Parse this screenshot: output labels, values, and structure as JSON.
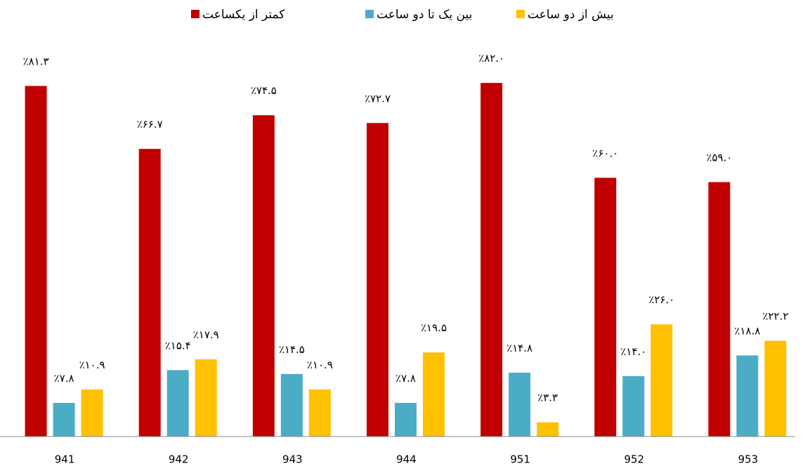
{
  "chart_data": {
    "type": "bar",
    "categories": [
      "941",
      "942",
      "943",
      "944",
      "951",
      "952",
      "953"
    ],
    "series": [
      {
        "name": "کمتر از یکساعت",
        "color": "#c00000",
        "values": [
          81.3,
          66.7,
          74.5,
          72.7,
          82.0,
          60.0,
          59.0
        ],
        "value_labels": [
          "٪۸۱.۳",
          "٪۶۶.۷",
          "٪۷۴.۵",
          "٪۷۲.۷",
          "٪۸۲.۰",
          "٪۶۰.۰",
          "٪۵۹.۰"
        ]
      },
      {
        "name": "بین یک تا دو ساعت",
        "color": "#4bacc6",
        "values": [
          7.8,
          15.4,
          14.5,
          7.8,
          14.8,
          14.0,
          18.8
        ],
        "value_labels": [
          "٪۷.۸",
          "٪۱۵.۴",
          "٪۱۴.۵",
          "٪۷.۸",
          "٪۱۴.۸",
          "٪۱۴.۰",
          "٪۱۸.۸"
        ]
      },
      {
        "name": "بیش از دو ساعت",
        "color": "#ffc000",
        "values": [
          10.9,
          17.9,
          10.9,
          19.5,
          3.3,
          26.0,
          22.2
        ],
        "value_labels": [
          "٪۱۰.۹",
          "٪۱۷.۹",
          "٪۱۰.۹",
          "٪۱۹.۵",
          "٪۳.۳",
          "٪۲۶.۰",
          "٪۲۲.۲"
        ]
      }
    ],
    "ylim": [
      0,
      90
    ],
    "legend": "top"
  }
}
